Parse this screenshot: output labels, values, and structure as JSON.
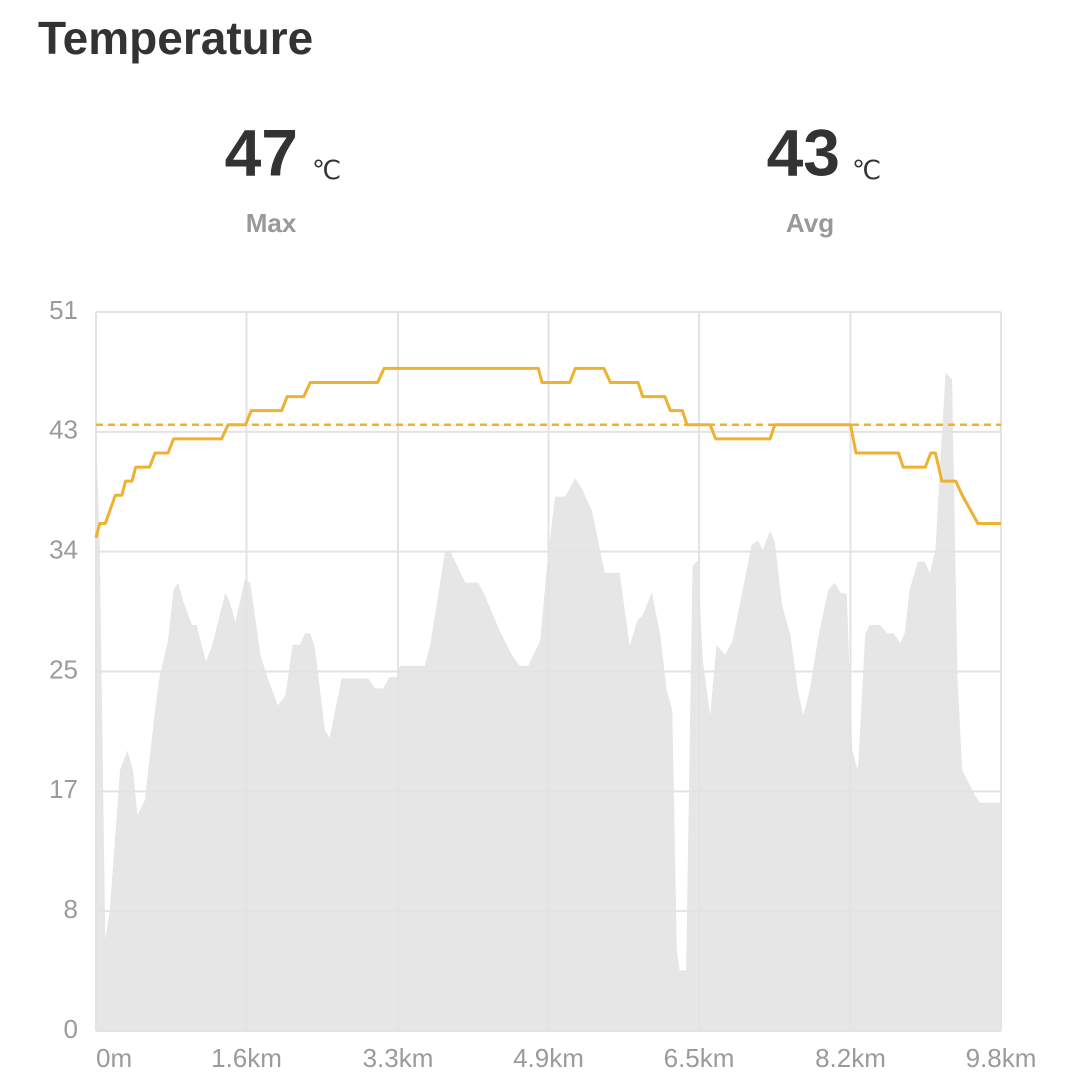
{
  "title": "Temperature",
  "stats": [
    {
      "value": 47,
      "unit": "℃",
      "label": "Max"
    },
    {
      "value": 43,
      "unit": "℃",
      "label": "Avg"
    }
  ],
  "chart_data": {
    "type": "line",
    "xlim": [
      0,
      9.8
    ],
    "xticks": [
      {
        "value": 0,
        "label": "0m"
      },
      {
        "value": 1.63,
        "label": "1.6km"
      },
      {
        "value": 3.27,
        "label": "3.3km"
      },
      {
        "value": 4.9,
        "label": "4.9km"
      },
      {
        "value": 6.53,
        "label": "6.5km"
      },
      {
        "value": 8.17,
        "label": "8.2km"
      },
      {
        "value": 9.8,
        "label": "9.8km"
      }
    ],
    "ylim": [
      0,
      51
    ],
    "yticks": [
      0,
      {
        "value": 8.5,
        "label": "8"
      },
      17,
      {
        "value": 25.5,
        "label": "25"
      },
      34,
      {
        "value": 42.5,
        "label": "43"
      },
      51
    ],
    "grid": true,
    "series": [
      {
        "type": "area",
        "color": "#e6e6e6",
        "x": [
          0,
          0.04,
          0.1,
          0.15,
          0.26,
          0.34,
          0.4,
          0.45,
          0.53,
          0.64,
          0.69,
          0.78,
          0.84,
          0.89,
          0.94,
          1.04,
          1.09,
          1.19,
          1.26,
          1.4,
          1.45,
          1.51,
          1.61,
          1.67,
          1.78,
          1.86,
          1.97,
          2.05,
          2.13,
          2.21,
          2.26,
          2.32,
          2.37,
          2.48,
          2.53,
          2.66,
          2.95,
          3.02,
          3.11,
          3.18,
          3.26,
          3.29,
          3.56,
          3.62,
          3.78,
          3.83,
          4.0,
          4.14,
          4.21,
          4.37,
          4.5,
          4.59,
          4.68,
          4.81,
          4.89,
          4.97,
          5.08,
          5.19,
          5.26,
          5.37,
          5.51,
          5.67,
          5.78,
          5.86,
          5.92,
          6.02,
          6.11,
          6.18,
          6.24,
          6.29,
          6.32,
          6.39,
          6.46,
          6.52,
          6.57,
          6.65,
          6.72,
          6.81,
          6.89,
          6.97,
          7.1,
          7.17,
          7.22,
          7.3,
          7.35,
          7.43,
          7.52,
          7.6,
          7.66,
          7.73,
          7.82,
          7.93,
          8.0,
          8.06,
          8.13,
          8.19,
          8.25,
          8.33,
          8.38,
          8.49,
          8.57,
          8.64,
          8.71,
          8.76,
          8.81,
          8.9,
          8.97,
          9.03,
          9.09,
          9.14,
          9.2,
          9.27,
          9.33,
          9.38,
          9.52,
          9.57,
          9.8
        ],
        "values": [
          42.5,
          34.8,
          6.5,
          8.6,
          18.5,
          19.9,
          18.5,
          15.3,
          16.4,
          22.8,
          25.2,
          27.7,
          31.3,
          31.8,
          30.6,
          28.8,
          28.8,
          26.2,
          27.4,
          31.1,
          30.4,
          29.0,
          32.0,
          31.8,
          26.7,
          25.0,
          23.1,
          23.8,
          27.4,
          27.4,
          28.2,
          28.2,
          27.2,
          21.3,
          20.8,
          25.0,
          25.0,
          24.3,
          24.3,
          25.1,
          25.1,
          25.9,
          25.9,
          27.4,
          34.0,
          34.1,
          31.8,
          31.8,
          30.9,
          28.4,
          26.7,
          25.9,
          25.9,
          27.7,
          33.4,
          37.9,
          37.9,
          39.2,
          38.5,
          36.9,
          32.5,
          32.5,
          27.3,
          29.1,
          29.5,
          31.1,
          28.1,
          24.2,
          22.8,
          5.7,
          4.3,
          4.3,
          33.0,
          33.4,
          26.3,
          22.4,
          27.4,
          26.7,
          27.6,
          30.2,
          34.5,
          34.8,
          34.1,
          35.5,
          34.7,
          30.2,
          28.1,
          24.2,
          22.4,
          24.2,
          27.9,
          31.3,
          31.8,
          31.1,
          31.0,
          19.9,
          18.5,
          28.2,
          28.8,
          28.8,
          28.2,
          28.2,
          27.5,
          28.3,
          31.3,
          33.3,
          33.3,
          32.5,
          34.1,
          40.1,
          46.7,
          46.2,
          24.9,
          18.5,
          16.7,
          16.2,
          16.2
        ]
      },
      {
        "type": "line",
        "color": "#f0b030",
        "x": [
          0,
          0.04,
          0.1,
          0.21,
          0.28,
          0.32,
          0.39,
          0.43,
          0.58,
          0.64,
          0.78,
          0.84,
          1.36,
          1.43,
          1.62,
          1.68,
          2.01,
          2.07,
          2.25,
          2.32,
          3.05,
          3.12,
          4.79,
          4.83,
          5.13,
          5.19,
          5.5,
          5.57,
          5.87,
          5.92,
          6.16,
          6.22,
          6.35,
          6.4,
          6.65,
          6.71,
          7.3,
          7.35,
          8.17,
          8.23,
          8.69,
          8.74,
          8.98,
          9.04,
          9.09,
          9.16,
          9.31,
          9.38,
          9.55,
          9.8
        ],
        "values": [
          35,
          36,
          36,
          38,
          38,
          39,
          39,
          40,
          40,
          41,
          41,
          42,
          42,
          43,
          43,
          44,
          44,
          45,
          45,
          46,
          46,
          47,
          47,
          46,
          46,
          47,
          47,
          46,
          46,
          45,
          45,
          44,
          44,
          43,
          43,
          42,
          42,
          43,
          43,
          41,
          41,
          40,
          40,
          41,
          41,
          39,
          39,
          38,
          36,
          36
        ]
      }
    ]
  }
}
